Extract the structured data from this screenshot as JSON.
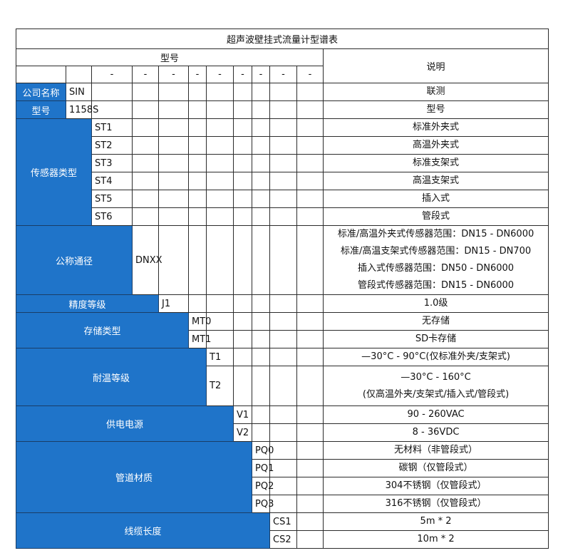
{
  "title": "超声波壁挂式流量计型谱表",
  "header": {
    "model_label": "型号",
    "desc_label": "说明",
    "dash": "-"
  },
  "colors": {
    "label_bg": "#1f74c9",
    "label_text": "#ffffff",
    "border": "#2b2b2b"
  },
  "groups": [
    {
      "label": "公司名称",
      "rows": [
        {
          "code": "SIN",
          "desc": [
            "联测"
          ]
        }
      ]
    },
    {
      "label": "型号",
      "rows": [
        {
          "code": "1158S",
          "desc": [
            "型号"
          ]
        }
      ]
    },
    {
      "label": "传感器类型",
      "rows": [
        {
          "code": "ST1",
          "desc": [
            "标准外夹式"
          ]
        },
        {
          "code": "ST2",
          "desc": [
            "高温外夹式"
          ]
        },
        {
          "code": "ST3",
          "desc": [
            "标准支架式"
          ]
        },
        {
          "code": "ST4",
          "desc": [
            "高温支架式"
          ]
        },
        {
          "code": "ST5",
          "desc": [
            "插入式"
          ]
        },
        {
          "code": "ST6",
          "desc": [
            "管段式"
          ]
        }
      ]
    },
    {
      "label": "公称通径",
      "rows": [
        {
          "code": "DNXX",
          "desc": [
            "标准/高温外夹式传感器范围：DN15 - DN6000",
            "标准/高温支架式传感器范围：DN15 - DN700",
            "插入式传感器范围：DN50 - DN6000",
            "管段式传感器范围：DN15 - DN6000"
          ]
        }
      ]
    },
    {
      "label": "精度等级",
      "rows": [
        {
          "code": "J1",
          "desc": [
            "1.0级"
          ]
        }
      ]
    },
    {
      "label": "存储类型",
      "rows": [
        {
          "code": "MT0",
          "desc": [
            "无存储"
          ]
        },
        {
          "code": "MT1",
          "desc": [
            "SD卡存储"
          ]
        }
      ]
    },
    {
      "label": "耐温等级",
      "rows": [
        {
          "code": "T1",
          "desc": [
            "—30°C - 90°C(仅标准外夹/支架式)"
          ]
        },
        {
          "code": "T2",
          "desc": [
            "—30°C - 160°C",
            "(仅高温外夹/支架式/插入式/管段式)"
          ]
        }
      ]
    },
    {
      "label": "供电电源",
      "rows": [
        {
          "code": "V1",
          "desc": [
            "90 - 260VAC"
          ]
        },
        {
          "code": "V2",
          "desc": [
            "8 - 36VDC"
          ]
        }
      ]
    },
    {
      "label": "管道材质",
      "rows": [
        {
          "code": "PQ0",
          "desc": [
            "无材料（非管段式）"
          ]
        },
        {
          "code": "PQ1",
          "desc": [
            "碳钢（仅管段式）"
          ]
        },
        {
          "code": "PQ2",
          "desc": [
            "304不锈钢（仅管段式）"
          ]
        },
        {
          "code": "PQ3",
          "desc": [
            "316不锈钢（仅管段式）"
          ]
        }
      ]
    },
    {
      "label": "线缆长度",
      "rows": [
        {
          "code": "CS1",
          "desc": [
            "5m * 2"
          ]
        },
        {
          "code": "CS2",
          "desc": [
            "10m * 2"
          ]
        }
      ]
    }
  ]
}
